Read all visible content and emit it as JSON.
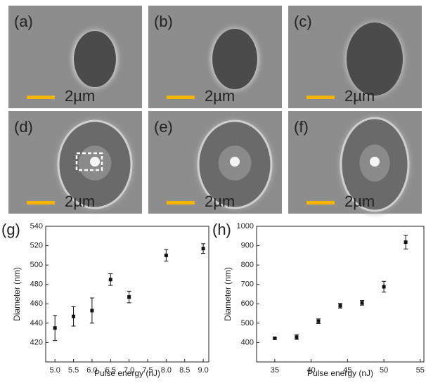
{
  "panels": [
    {
      "label": "(a)",
      "scale": "2µm"
    },
    {
      "label": "(b)",
      "scale": "2µm"
    },
    {
      "label": "(c)",
      "scale": "2µm"
    },
    {
      "label": "(d)",
      "scale": "2µm"
    },
    {
      "label": "(e)",
      "scale": "2µm"
    },
    {
      "label": "(f)",
      "scale": "2µm"
    }
  ],
  "chart_data": [
    {
      "type": "scatter",
      "panel_label": "(g)",
      "x_label": "Pulse energy (nJ)",
      "y_label": "Diameter (nm)",
      "x": [
        5.0,
        5.5,
        6.0,
        6.5,
        7.0,
        8.0,
        9.0
      ],
      "values": [
        435,
        447,
        453,
        485,
        467,
        510,
        517
      ],
      "errors": [
        13,
        10,
        13,
        6,
        6,
        6,
        5
      ],
      "color": "#111111",
      "xlim": [
        4.75,
        9.15
      ],
      "xticks": [
        {
          "value": 5,
          "label": "5.0"
        },
        5.5,
        {
          "value": 6,
          "label": "6.0"
        },
        6.5,
        {
          "value": 7,
          "label": "7.0"
        },
        7.5,
        {
          "value": 8,
          "label": "8.0"
        },
        8.5,
        {
          "value": 9,
          "label": "9.0"
        }
      ],
      "ylim": [
        400,
        540
      ],
      "yticks": [
        420,
        440,
        460,
        480,
        500,
        520,
        540
      ]
    },
    {
      "type": "scatter",
      "panel_label": "(h)",
      "x_label": "Pulse energy (nJ)",
      "y_label": "Diameter (nm)",
      "x": [
        35,
        38,
        41,
        44,
        47,
        50,
        53
      ],
      "values": [
        422,
        428,
        510,
        590,
        605,
        688,
        918
      ],
      "errors": [
        5,
        12,
        12,
        12,
        12,
        28,
        35
      ],
      "color": "#111111",
      "xlim": [
        32.5,
        55.5
      ],
      "xticks": [
        35,
        40,
        45,
        50,
        55
      ],
      "ylim": [
        300,
        1000
      ],
      "yticks": [
        400,
        500,
        600,
        700,
        800,
        900,
        1000
      ]
    }
  ]
}
